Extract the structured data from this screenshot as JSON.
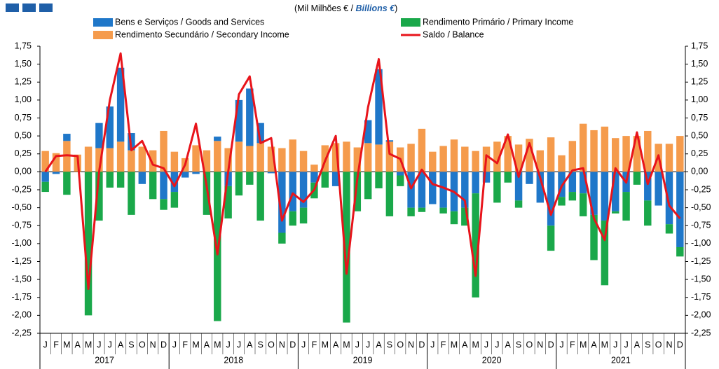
{
  "chart_data": {
    "type": "bar",
    "title_parts": [
      "(Mil Milhões € / ",
      "Billions €",
      ")"
    ],
    "categories": [
      "J",
      "F",
      "M",
      "A",
      "M",
      "J",
      "J",
      "A",
      "S",
      "O",
      "N",
      "D",
      "J",
      "F",
      "M",
      "A",
      "M",
      "J",
      "J",
      "A",
      "S",
      "O",
      "N",
      "D",
      "J",
      "F",
      "M",
      "A",
      "M",
      "J",
      "J",
      "A",
      "S",
      "O",
      "N",
      "D",
      "J",
      "F",
      "M",
      "A",
      "M",
      "J",
      "J",
      "A",
      "S",
      "O",
      "N",
      "D",
      "J",
      "F",
      "M",
      "A",
      "M",
      "J",
      "J",
      "A",
      "S",
      "O",
      "N",
      "D"
    ],
    "groups": [
      "2017",
      "2018",
      "2019",
      "2020",
      "2021"
    ],
    "series": [
      {
        "name": "Bens e Serviços / Goods and Services",
        "color": "#1f77c9",
        "kind": "bar",
        "values": [
          -0.14,
          -0.03,
          0.1,
          0,
          0,
          0.35,
          0.58,
          1.03,
          0.24,
          -0.17,
          0,
          -0.38,
          -0.28,
          -0.08,
          -0.03,
          0,
          0.06,
          -0.2,
          0.58,
          0.8,
          0.28,
          -0.02,
          -0.85,
          -0.55,
          -0.5,
          -0.15,
          0,
          -0.2,
          0,
          0,
          0.32,
          1.05,
          0.02,
          -0.05,
          -0.5,
          -0.5,
          -0.45,
          -0.5,
          -0.55,
          -0.5,
          -0.3,
          -0.15,
          0,
          0,
          -0.4,
          -0.17,
          -0.43,
          -0.75,
          -0.35,
          -0.28,
          -0.3,
          -0.6,
          -0.68,
          -0.55,
          -0.28,
          0,
          -0.4,
          -0.47,
          -0.73,
          -1.05
        ]
      },
      {
        "name": "Rendimento Primário / Primary Income",
        "color": "#1aa84a",
        "kind": "bar",
        "values": [
          -0.14,
          0,
          -0.32,
          0,
          -2.0,
          -0.68,
          -0.22,
          -0.22,
          -0.6,
          0,
          -0.38,
          -0.15,
          -0.22,
          0,
          0,
          -0.6,
          -2.08,
          -0.45,
          -0.33,
          -0.18,
          -0.68,
          0,
          -0.15,
          -0.2,
          -0.22,
          -0.22,
          -0.22,
          0,
          -2.1,
          -0.55,
          -0.38,
          -0.23,
          -0.62,
          -0.15,
          -0.12,
          -0.06,
          0,
          -0.08,
          -0.18,
          -0.25,
          -1.45,
          0,
          -0.43,
          -0.15,
          -0.1,
          0,
          0,
          -0.35,
          -0.12,
          -0.12,
          -0.32,
          -0.63,
          -0.9,
          -0.03,
          -0.4,
          -0.18,
          -0.35,
          0,
          -0.13,
          -0.13
        ]
      },
      {
        "name": "Rendimento Secundário / Secondary Income",
        "color": "#f59b4c",
        "kind": "bar",
        "values": [
          0.29,
          0.26,
          0.43,
          0.24,
          0.35,
          0.33,
          0.33,
          0.42,
          0.3,
          0.35,
          0.3,
          0.57,
          0.28,
          0.19,
          0.37,
          0.3,
          0.43,
          0.33,
          0.42,
          0.36,
          0.4,
          0.35,
          0.33,
          0.45,
          0.29,
          0.1,
          0.37,
          0.4,
          0.42,
          0.34,
          0.4,
          0.38,
          0.42,
          0.34,
          0.39,
          0.6,
          0.28,
          0.36,
          0.45,
          0.35,
          0.29,
          0.35,
          0.42,
          0.5,
          0.38,
          0.46,
          0.3,
          0.48,
          0.23,
          0.43,
          0.67,
          0.58,
          0.63,
          0.47,
          0.5,
          0.5,
          0.57,
          0.39,
          0.39,
          0.5
        ]
      },
      {
        "name": "Saldo / Balance",
        "color": "#e8141b",
        "kind": "line",
        "values": [
          0.0,
          0.22,
          0.23,
          0.22,
          -1.63,
          0.0,
          1.0,
          1.65,
          0.3,
          0.43,
          0.1,
          0.05,
          -0.2,
          0.1,
          0.67,
          -0.2,
          -1.15,
          0.0,
          1.08,
          1.33,
          0.4,
          0.47,
          -0.68,
          -0.3,
          -0.42,
          -0.25,
          0.15,
          0.5,
          -1.42,
          -0.1,
          0.9,
          1.57,
          0.25,
          0.18,
          -0.23,
          0.03,
          -0.17,
          -0.22,
          -0.28,
          -0.4,
          -1.45,
          0.23,
          0.12,
          0.52,
          -0.07,
          0.4,
          -0.08,
          -0.6,
          -0.2,
          0.02,
          0.05,
          -0.65,
          -0.95,
          0.05,
          -0.15,
          0.55,
          -0.17,
          0.23,
          -0.47,
          -0.65
        ]
      }
    ],
    "ylim": [
      -2.25,
      1.75
    ],
    "yticks": [
      {
        "value": 1.75,
        "label": "1,75"
      },
      {
        "value": 1.5,
        "label": "1,50"
      },
      {
        "value": 1.25,
        "label": "1,25"
      },
      {
        "value": 1.0,
        "label": "1,00"
      },
      {
        "value": 0.75,
        "label": "0,75"
      },
      {
        "value": 0.5,
        "label": "0,50"
      },
      {
        "value": 0.25,
        "label": "0,25"
      },
      {
        "value": 0,
        "label": "0,00"
      },
      {
        "value": -0.25,
        "label": "-0,25"
      },
      {
        "value": -0.5,
        "label": "-0,50"
      },
      {
        "value": -0.75,
        "label": "-0,75"
      },
      {
        "value": -1.0,
        "label": "-1,00"
      },
      {
        "value": -1.25,
        "label": "-1,25"
      },
      {
        "value": -1.5,
        "label": "-1,50"
      },
      {
        "value": -1.75,
        "label": "-1,75"
      },
      {
        "value": -2.0,
        "label": "-2,00"
      },
      {
        "value": -2.25,
        "label": "-2,25"
      }
    ],
    "y2lim": [
      -2.25,
      1.75
    ],
    "y2ticks": [
      {
        "value": 1.75,
        "label": "1,75"
      },
      {
        "value": 1.5,
        "label": "1,50"
      },
      {
        "value": 1.25,
        "label": "1,25"
      },
      {
        "value": 1.0,
        "label": "1,00"
      },
      {
        "value": 0.75,
        "label": "0,75"
      },
      {
        "value": 0.5,
        "label": "0,50"
      },
      {
        "value": 0.25,
        "label": "0,25"
      },
      {
        "value": 0,
        "label": "0,00"
      },
      {
        "value": -0.25,
        "label": "-0,25"
      },
      {
        "value": -0.5,
        "label": "-0,50"
      },
      {
        "value": -0.75,
        "label": "-0,75"
      },
      {
        "value": -1.0,
        "label": "-1,00"
      },
      {
        "value": -1.25,
        "label": "-1,25"
      },
      {
        "value": -1.5,
        "label": "-1,50"
      },
      {
        "value": -1.75,
        "label": "-1,75"
      },
      {
        "value": -2.0,
        "label": "-2,00"
      },
      {
        "value": -2.25,
        "label": "-2,25"
      }
    ],
    "grid": false
  }
}
